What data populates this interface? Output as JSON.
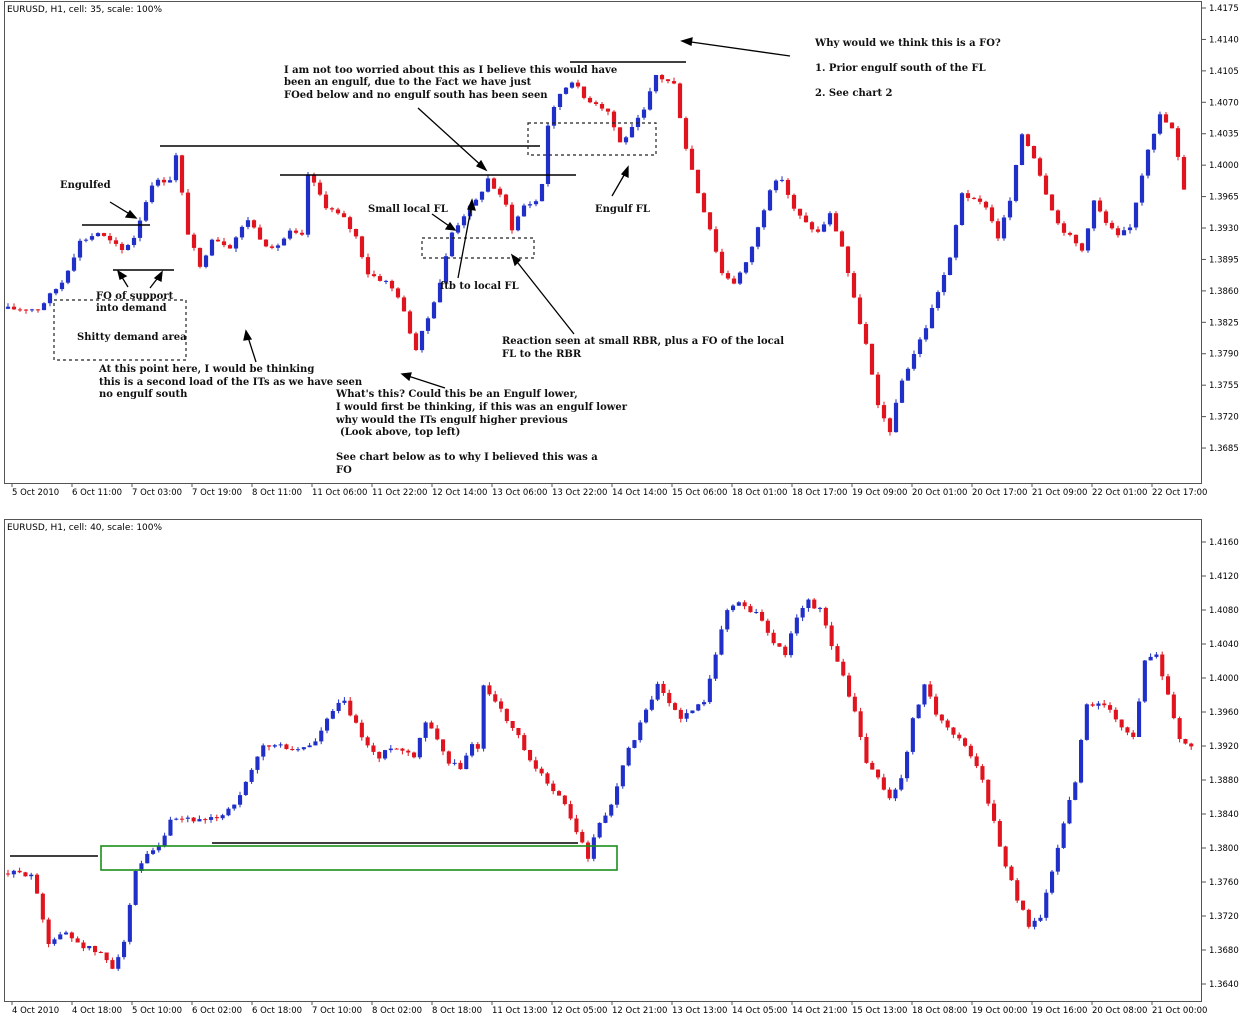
{
  "colors": {
    "bull": "#1f2fc8",
    "bear": "#e0141e",
    "zone": "#1a8f1a",
    "frame": "#555555"
  },
  "chart_data": [
    {
      "type": "candlestick",
      "header": "EURUSD, H1, cell: 35, scale: 100%",
      "symbol": "EURUSD",
      "timeframe": "H1",
      "ylim": [
        1.3665,
        1.4175
      ],
      "y_ticks": [
        "1.4175",
        "1.4140",
        "1.4105",
        "1.4070",
        "1.4035",
        "1.4000",
        "1.3965",
        "1.3930",
        "1.3895",
        "1.3860",
        "1.3825",
        "1.3790",
        "1.3755",
        "1.3720",
        "1.3685"
      ],
      "x_ticks": [
        "5 Oct 2010",
        "6 Oct 11:00",
        "7 Oct 03:00",
        "7 Oct 19:00",
        "8 Oct 11:00",
        "11 Oct 06:00",
        "11 Oct 22:00",
        "12 Oct 14:00",
        "13 Oct 06:00",
        "13 Oct 22:00",
        "14 Oct 14:00",
        "15 Oct 06:00",
        "18 Oct 01:00",
        "18 Oct 17:00",
        "19 Oct 09:00",
        "20 Oct 01:00",
        "20 Oct 17:00",
        "21 Oct 09:00",
        "22 Oct 01:00",
        "22 Oct 17:00"
      ],
      "price_path": [
        [
          0,
          1.384
        ],
        [
          5,
          1.384
        ],
        [
          9,
          1.387
        ],
        [
          12,
          1.3915
        ],
        [
          15,
          1.3925
        ],
        [
          19,
          1.3905
        ],
        [
          21,
          1.392
        ],
        [
          24,
          1.398
        ],
        [
          27,
          1.3985
        ],
        [
          28,
          1.401
        ],
        [
          30,
          1.3925
        ],
        [
          32,
          1.3885
        ],
        [
          34,
          1.392
        ],
        [
          37,
          1.391
        ],
        [
          40,
          1.394
        ],
        [
          42,
          1.392
        ],
        [
          44,
          1.3905
        ],
        [
          47,
          1.3925
        ],
        [
          49,
          1.392
        ],
        [
          50,
          1.399
        ],
        [
          53,
          1.3955
        ],
        [
          56,
          1.394
        ],
        [
          58,
          1.392
        ],
        [
          60,
          1.388
        ],
        [
          63,
          1.387
        ],
        [
          65,
          1.3855
        ],
        [
          67,
          1.3815
        ],
        [
          68,
          1.3795
        ],
        [
          70,
          1.383
        ],
        [
          72,
          1.387
        ],
        [
          74,
          1.3925
        ],
        [
          76,
          1.3945
        ],
        [
          78,
          1.396
        ],
        [
          80,
          1.3985
        ],
        [
          82,
          1.3965
        ],
        [
          83,
          1.3955
        ],
        [
          84,
          1.393
        ],
        [
          86,
          1.3955
        ],
        [
          88,
          1.396
        ],
        [
          89,
          1.398
        ],
        [
          90,
          1.4045
        ],
        [
          92,
          1.408
        ],
        [
          94,
          1.4095
        ],
        [
          96,
          1.4075
        ],
        [
          98,
          1.407
        ],
        [
          100,
          1.406
        ],
        [
          102,
          1.4025
        ],
        [
          104,
          1.404
        ],
        [
          106,
          1.406
        ],
        [
          108,
          1.41
        ],
        [
          111,
          1.409
        ],
        [
          113,
          1.402
        ],
        [
          115,
          1.397
        ],
        [
          117,
          1.393
        ],
        [
          119,
          1.388
        ],
        [
          121,
          1.387
        ],
        [
          123,
          1.389
        ],
        [
          125,
          1.393
        ],
        [
          127,
          1.3975
        ],
        [
          129,
          1.3985
        ],
        [
          131,
          1.395
        ],
        [
          133,
          1.3935
        ],
        [
          135,
          1.3925
        ],
        [
          137,
          1.3945
        ],
        [
          139,
          1.391
        ],
        [
          141,
          1.385
        ],
        [
          143,
          1.38
        ],
        [
          145,
          1.373
        ],
        [
          147,
          1.3705
        ],
        [
          149,
          1.376
        ],
        [
          151,
          1.379
        ],
        [
          153,
          1.382
        ],
        [
          155,
          1.386
        ],
        [
          157,
          1.3895
        ],
        [
          159,
          1.397
        ],
        [
          161,
          1.396
        ],
        [
          163,
          1.3955
        ],
        [
          165,
          1.392
        ],
        [
          167,
          1.396
        ],
        [
          169,
          1.4035
        ],
        [
          171,
          1.401
        ],
        [
          173,
          1.397
        ],
        [
          175,
          1.3935
        ],
        [
          177,
          1.392
        ],
        [
          179,
          1.3905
        ],
        [
          181,
          1.396
        ],
        [
          183,
          1.3935
        ],
        [
          185,
          1.392
        ],
        [
          187,
          1.393
        ],
        [
          188,
          1.396
        ],
        [
          190,
          1.402
        ],
        [
          192,
          1.4055
        ],
        [
          194,
          1.404
        ],
        [
          196,
          1.3975
        ]
      ],
      "annotations": [
        "Why would we think this is a FO?",
        "1. Prior engulf south of the FL",
        "2. See chart 2",
        "I am not too worried about this as I believe this would have",
        "been an engulf, due to the Fact we have just",
        "FOed below and no engulf south has been seen",
        "Engulfed",
        "Small local FL",
        "Engulf FL",
        "ftb to local FL",
        "FO of support",
        "into demand",
        "Shitty demand area",
        "Reaction seen at small RBR, plus a FO of the local",
        "FL to the RBR",
        "At this point here, I would be thinking",
        "this is a second load of the ITs as we have seen",
        "no engulf south",
        "What's this? Could this be an Engulf lower,",
        "I would first be thinking, if this was an engulf lower",
        "why would the ITs engulf higher previous",
        "(Look above, top left)",
        "See chart below as to why I believed this was a",
        "FO"
      ]
    },
    {
      "type": "candlestick",
      "header": "EURUSD, H1, cell: 40, scale: 100%",
      "symbol": "EURUSD",
      "timeframe": "H1",
      "ylim": [
        1.362,
        1.418
      ],
      "y_ticks": [
        "1.4160",
        "1.4120",
        "1.4080",
        "1.4040",
        "1.4000",
        "1.3960",
        "1.3920",
        "1.3880",
        "1.3840",
        "1.3800",
        "1.3760",
        "1.3720",
        "1.3680",
        "1.3640"
      ],
      "x_ticks": [
        "4 Oct 2010",
        "4 Oct 18:00",
        "5 Oct 10:00",
        "6 Oct 02:00",
        "6 Oct 18:00",
        "7 Oct 10:00",
        "8 Oct 02:00",
        "8 Oct 18:00",
        "11 Oct 13:00",
        "12 Oct 05:00",
        "12 Oct 21:00",
        "13 Oct 13:00",
        "14 Oct 05:00",
        "14 Oct 21:00",
        "15 Oct 13:00",
        "18 Oct 08:00",
        "19 Oct 00:00",
        "19 Oct 16:00",
        "20 Oct 08:00",
        "21 Oct 00:00"
      ],
      "price_path": [
        [
          0,
          1.377
        ],
        [
          4,
          1.377
        ],
        [
          7,
          1.369
        ],
        [
          10,
          1.37
        ],
        [
          13,
          1.3685
        ],
        [
          16,
          1.3675
        ],
        [
          18,
          1.366
        ],
        [
          20,
          1.369
        ],
        [
          22,
          1.377
        ],
        [
          24,
          1.379
        ],
        [
          26,
          1.38
        ],
        [
          28,
          1.383
        ],
        [
          31,
          1.3835
        ],
        [
          34,
          1.383
        ],
        [
          37,
          1.384
        ],
        [
          40,
          1.386
        ],
        [
          42,
          1.389
        ],
        [
          44,
          1.392
        ],
        [
          47,
          1.392
        ],
        [
          50,
          1.3915
        ],
        [
          53,
          1.3925
        ],
        [
          55,
          1.395
        ],
        [
          57,
          1.397
        ],
        [
          58,
          1.397
        ],
        [
          60,
          1.3945
        ],
        [
          62,
          1.392
        ],
        [
          64,
          1.3905
        ],
        [
          66,
          1.392
        ],
        [
          68,
          1.3915
        ],
        [
          70,
          1.391
        ],
        [
          72,
          1.395
        ],
        [
          74,
          1.393
        ],
        [
          76,
          1.39
        ],
        [
          78,
          1.3895
        ],
        [
          80,
          1.392
        ],
        [
          81,
          1.392
        ],
        [
          82,
          1.399
        ],
        [
          84,
          1.3975
        ],
        [
          86,
          1.395
        ],
        [
          88,
          1.393
        ],
        [
          90,
          1.39
        ],
        [
          92,
          1.3885
        ],
        [
          94,
          1.387
        ],
        [
          96,
          1.385
        ],
        [
          98,
          1.382
        ],
        [
          100,
          1.379
        ],
        [
          102,
          1.383
        ],
        [
          104,
          1.385
        ],
        [
          106,
          1.39
        ],
        [
          108,
          1.393
        ],
        [
          110,
          1.396
        ],
        [
          112,
          1.399
        ],
        [
          114,
          1.397
        ],
        [
          116,
          1.3955
        ],
        [
          118,
          1.396
        ],
        [
          120,
          1.3975
        ],
        [
          122,
          1.403
        ],
        [
          124,
          1.408
        ],
        [
          126,
          1.409
        ],
        [
          128,
          1.408
        ],
        [
          130,
          1.407
        ],
        [
          132,
          1.404
        ],
        [
          134,
          1.403
        ],
        [
          136,
          1.407
        ],
        [
          138,
          1.409
        ],
        [
          140,
          1.408
        ],
        [
          142,
          1.404
        ],
        [
          144,
          1.4
        ],
        [
          146,
          1.396
        ],
        [
          148,
          1.39
        ],
        [
          150,
          1.388
        ],
        [
          152,
          1.386
        ],
        [
          154,
          1.388
        ],
        [
          156,
          1.395
        ],
        [
          158,
          1.399
        ],
        [
          160,
          1.396
        ],
        [
          162,
          1.394
        ],
        [
          164,
          1.393
        ],
        [
          166,
          1.391
        ],
        [
          168,
          1.388
        ],
        [
          170,
          1.383
        ],
        [
          172,
          1.378
        ],
        [
          174,
          1.374
        ],
        [
          176,
          1.371
        ],
        [
          178,
          1.372
        ],
        [
          180,
          1.377
        ],
        [
          182,
          1.383
        ],
        [
          184,
          1.388
        ],
        [
          186,
          1.397
        ],
        [
          188,
          1.397
        ],
        [
          190,
          1.396
        ],
        [
          192,
          1.394
        ],
        [
          194,
          1.393
        ],
        [
          196,
          1.402
        ],
        [
          198,
          1.403
        ],
        [
          200,
          1.398
        ],
        [
          202,
          1.393
        ],
        [
          204,
          1.392
        ]
      ]
    }
  ]
}
